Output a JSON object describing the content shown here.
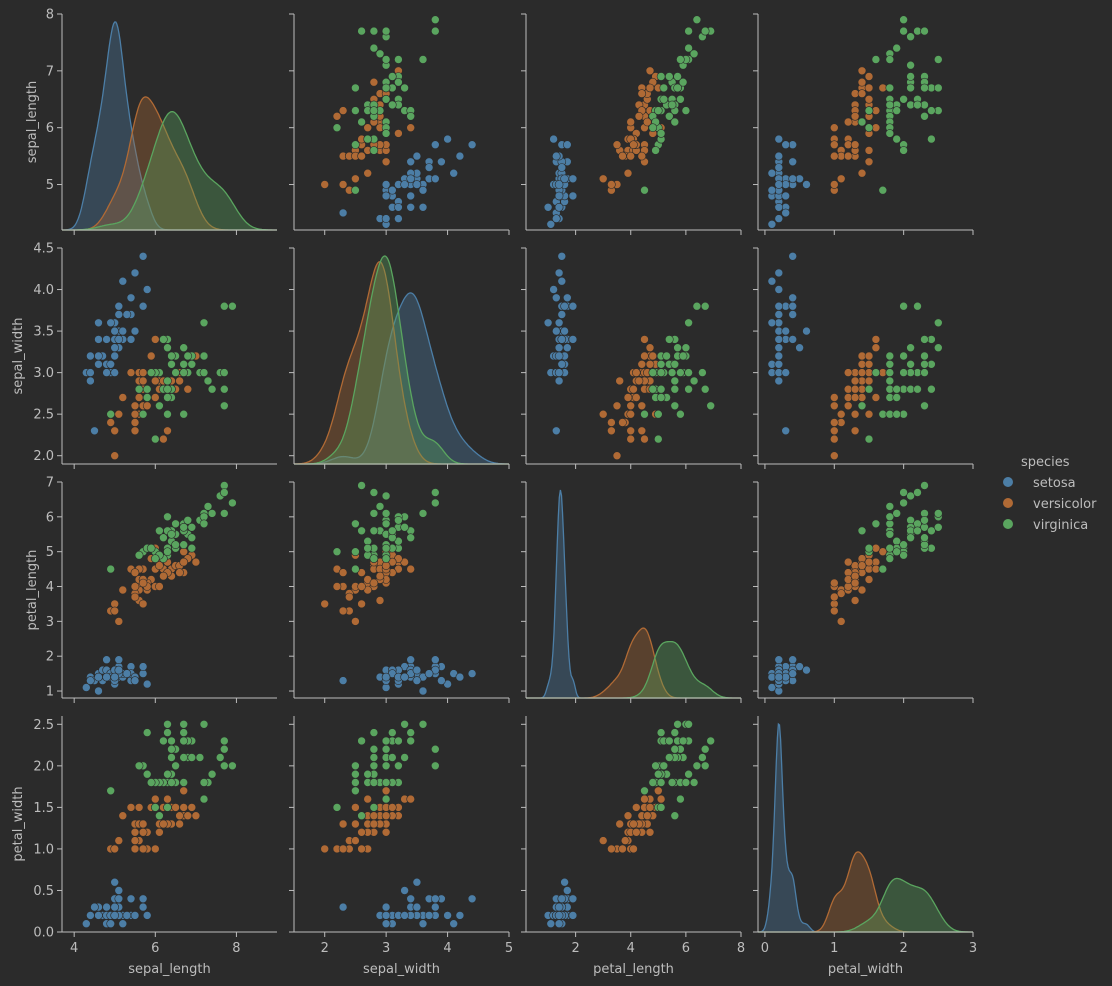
{
  "chart_data": {
    "type": "scatter",
    "kind": "pairplot",
    "diagonal": "kde",
    "grid": false,
    "variables": [
      "sepal_length",
      "sepal_width",
      "petal_length",
      "petal_width"
    ],
    "axes": {
      "sepal_length": {
        "label": "sepal_length",
        "ticks": [
          "4",
          "6",
          "8"
        ],
        "range": [
          3.7,
          9.0
        ]
      },
      "sepal_width": {
        "label": "sepal_width",
        "ticks": [
          "2",
          "3",
          "4",
          "5"
        ],
        "range": [
          1.5,
          5.0
        ]
      },
      "petal_length": {
        "label": "petal_length",
        "ticks": [
          "2",
          "4",
          "6",
          "8"
        ],
        "range": [
          0.2,
          8.0
        ]
      },
      "petal_width": {
        "label": "petal_width",
        "ticks": [
          "0",
          "1",
          "2",
          "3"
        ],
        "range": [
          -0.1,
          3.0
        ]
      }
    },
    "row_axes": {
      "sepal_length": {
        "ticks": [
          "5",
          "6",
          "7",
          "8"
        ],
        "range": [
          4.2,
          8.0
        ]
      },
      "sepal_width": {
        "ticks": [
          "2.0",
          "2.5",
          "3.0",
          "3.5",
          "4.0",
          "4.5"
        ],
        "range": [
          1.9,
          4.5
        ]
      },
      "petal_length": {
        "ticks": [
          "1",
          "2",
          "3",
          "4",
          "5",
          "6",
          "7"
        ],
        "range": [
          0.8,
          7.0
        ]
      },
      "petal_width": {
        "ticks": [
          "0.0",
          "0.5",
          "1.0",
          "1.5",
          "2.0",
          "2.5"
        ],
        "range": [
          0.0,
          2.6
        ]
      }
    },
    "legend": {
      "title": "species",
      "position": "right",
      "entries": [
        {
          "name": "setosa",
          "color": "#4c7ea6"
        },
        {
          "name": "versicolor",
          "color": "#b06a35"
        },
        {
          "name": "virginica",
          "color": "#5aa55f"
        }
      ]
    },
    "series": [
      {
        "name": "setosa",
        "color": "#4c7ea6",
        "points": [
          [
            5.1,
            3.5,
            1.4,
            0.2
          ],
          [
            4.9,
            3.0,
            1.4,
            0.2
          ],
          [
            4.7,
            3.2,
            1.3,
            0.2
          ],
          [
            4.6,
            3.1,
            1.5,
            0.2
          ],
          [
            5.0,
            3.6,
            1.4,
            0.2
          ],
          [
            5.4,
            3.9,
            1.7,
            0.4
          ],
          [
            4.6,
            3.4,
            1.4,
            0.3
          ],
          [
            5.0,
            3.4,
            1.5,
            0.2
          ],
          [
            4.4,
            2.9,
            1.4,
            0.2
          ],
          [
            4.9,
            3.1,
            1.5,
            0.1
          ],
          [
            5.4,
            3.7,
            1.5,
            0.2
          ],
          [
            4.8,
            3.4,
            1.6,
            0.2
          ],
          [
            4.8,
            3.0,
            1.4,
            0.1
          ],
          [
            4.3,
            3.0,
            1.1,
            0.1
          ],
          [
            5.8,
            4.0,
            1.2,
            0.2
          ],
          [
            5.7,
            4.4,
            1.5,
            0.4
          ],
          [
            5.4,
            3.9,
            1.3,
            0.4
          ],
          [
            5.1,
            3.5,
            1.4,
            0.3
          ],
          [
            5.7,
            3.8,
            1.7,
            0.3
          ],
          [
            5.1,
            3.8,
            1.5,
            0.3
          ],
          [
            5.4,
            3.4,
            1.7,
            0.2
          ],
          [
            5.1,
            3.7,
            1.5,
            0.4
          ],
          [
            4.6,
            3.6,
            1.0,
            0.2
          ],
          [
            5.1,
            3.3,
            1.7,
            0.5
          ],
          [
            4.8,
            3.4,
            1.9,
            0.2
          ],
          [
            5.0,
            3.0,
            1.6,
            0.2
          ],
          [
            5.0,
            3.4,
            1.6,
            0.4
          ],
          [
            5.2,
            3.5,
            1.5,
            0.2
          ],
          [
            5.2,
            3.4,
            1.4,
            0.2
          ],
          [
            4.7,
            3.2,
            1.6,
            0.2
          ],
          [
            4.8,
            3.1,
            1.6,
            0.2
          ],
          [
            5.4,
            3.4,
            1.5,
            0.4
          ],
          [
            5.2,
            4.1,
            1.5,
            0.1
          ],
          [
            5.5,
            4.2,
            1.4,
            0.2
          ],
          [
            4.9,
            3.1,
            1.5,
            0.2
          ],
          [
            5.0,
            3.2,
            1.2,
            0.2
          ],
          [
            5.5,
            3.5,
            1.3,
            0.2
          ],
          [
            4.9,
            3.6,
            1.4,
            0.1
          ],
          [
            4.4,
            3.0,
            1.3,
            0.2
          ],
          [
            5.1,
            3.4,
            1.5,
            0.2
          ],
          [
            5.0,
            3.5,
            1.3,
            0.3
          ],
          [
            4.5,
            2.3,
            1.3,
            0.3
          ],
          [
            4.4,
            3.2,
            1.3,
            0.2
          ],
          [
            5.0,
            3.5,
            1.6,
            0.6
          ],
          [
            5.1,
            3.8,
            1.9,
            0.4
          ],
          [
            4.8,
            3.0,
            1.4,
            0.3
          ],
          [
            5.1,
            3.8,
            1.6,
            0.2
          ],
          [
            4.6,
            3.2,
            1.4,
            0.2
          ],
          [
            5.3,
            3.7,
            1.5,
            0.2
          ],
          [
            5.0,
            3.3,
            1.4,
            0.2
          ]
        ]
      },
      {
        "name": "versicolor",
        "color": "#b06a35",
        "points": [
          [
            7.0,
            3.2,
            4.7,
            1.4
          ],
          [
            6.4,
            3.2,
            4.5,
            1.5
          ],
          [
            6.9,
            3.1,
            4.9,
            1.5
          ],
          [
            5.5,
            2.3,
            4.0,
            1.3
          ],
          [
            6.5,
            2.8,
            4.6,
            1.5
          ],
          [
            5.7,
            2.8,
            4.5,
            1.3
          ],
          [
            6.3,
            3.3,
            4.7,
            1.6
          ],
          [
            4.9,
            2.4,
            3.3,
            1.0
          ],
          [
            6.6,
            2.9,
            4.6,
            1.3
          ],
          [
            5.2,
            2.7,
            3.9,
            1.4
          ],
          [
            5.0,
            2.0,
            3.5,
            1.0
          ],
          [
            5.9,
            3.0,
            4.2,
            1.5
          ],
          [
            6.0,
            2.2,
            4.0,
            1.0
          ],
          [
            6.1,
            2.9,
            4.7,
            1.4
          ],
          [
            5.6,
            2.9,
            3.6,
            1.3
          ],
          [
            6.7,
            3.1,
            4.4,
            1.4
          ],
          [
            5.6,
            3.0,
            4.5,
            1.5
          ],
          [
            5.8,
            2.7,
            4.1,
            1.0
          ],
          [
            6.2,
            2.2,
            4.5,
            1.5
          ],
          [
            5.6,
            2.5,
            3.9,
            1.1
          ],
          [
            5.9,
            3.2,
            4.8,
            1.8
          ],
          [
            6.1,
            2.8,
            4.0,
            1.3
          ],
          [
            6.3,
            2.5,
            4.9,
            1.5
          ],
          [
            6.1,
            2.8,
            4.7,
            1.2
          ],
          [
            6.4,
            2.9,
            4.3,
            1.3
          ],
          [
            6.6,
            3.0,
            4.4,
            1.4
          ],
          [
            6.8,
            2.8,
            4.8,
            1.4
          ],
          [
            6.7,
            3.0,
            5.0,
            1.7
          ],
          [
            6.0,
            2.9,
            4.5,
            1.5
          ],
          [
            5.7,
            2.6,
            3.5,
            1.0
          ],
          [
            5.5,
            2.4,
            3.8,
            1.1
          ],
          [
            5.5,
            2.4,
            3.7,
            1.0
          ],
          [
            5.8,
            2.7,
            3.9,
            1.2
          ],
          [
            6.0,
            2.7,
            5.1,
            1.6
          ],
          [
            5.4,
            3.0,
            4.5,
            1.5
          ],
          [
            6.0,
            3.4,
            4.5,
            1.6
          ],
          [
            6.7,
            3.1,
            4.7,
            1.5
          ],
          [
            6.3,
            2.3,
            4.4,
            1.3
          ],
          [
            5.6,
            3.0,
            4.1,
            1.3
          ],
          [
            5.5,
            2.5,
            4.0,
            1.3
          ],
          [
            5.5,
            2.6,
            4.4,
            1.2
          ],
          [
            6.1,
            3.0,
            4.6,
            1.4
          ],
          [
            5.8,
            2.6,
            4.0,
            1.2
          ],
          [
            5.0,
            2.3,
            3.3,
            1.0
          ],
          [
            5.6,
            2.7,
            4.2,
            1.3
          ],
          [
            5.7,
            3.0,
            4.2,
            1.2
          ],
          [
            5.7,
            2.9,
            4.2,
            1.3
          ],
          [
            6.2,
            2.9,
            4.3,
            1.3
          ],
          [
            5.1,
            2.5,
            3.0,
            1.1
          ],
          [
            5.7,
            2.8,
            4.1,
            1.3
          ]
        ]
      },
      {
        "name": "virginica",
        "color": "#5aa55f",
        "points": [
          [
            6.3,
            3.3,
            6.0,
            2.5
          ],
          [
            5.8,
            2.7,
            5.1,
            1.9
          ],
          [
            7.1,
            3.0,
            5.9,
            2.1
          ],
          [
            6.3,
            2.9,
            5.6,
            1.8
          ],
          [
            6.5,
            3.0,
            5.8,
            2.2
          ],
          [
            7.6,
            3.0,
            6.6,
            2.1
          ],
          [
            4.9,
            2.5,
            4.5,
            1.7
          ],
          [
            7.3,
            2.9,
            6.3,
            1.8
          ],
          [
            6.7,
            2.5,
            5.8,
            1.8
          ],
          [
            7.2,
            3.6,
            6.1,
            2.5
          ],
          [
            6.5,
            3.2,
            5.1,
            2.0
          ],
          [
            6.4,
            2.7,
            5.3,
            1.9
          ],
          [
            6.8,
            3.0,
            5.5,
            2.1
          ],
          [
            5.7,
            2.5,
            5.0,
            2.0
          ],
          [
            5.8,
            2.8,
            5.1,
            2.4
          ],
          [
            6.4,
            3.2,
            5.3,
            2.3
          ],
          [
            6.5,
            3.0,
            5.5,
            1.8
          ],
          [
            7.7,
            3.8,
            6.7,
            2.2
          ],
          [
            7.7,
            2.6,
            6.9,
            2.3
          ],
          [
            6.0,
            2.2,
            5.0,
            1.5
          ],
          [
            6.9,
            3.2,
            5.7,
            2.3
          ],
          [
            5.6,
            2.8,
            4.9,
            2.0
          ],
          [
            7.7,
            2.8,
            6.7,
            2.0
          ],
          [
            6.3,
            2.7,
            4.9,
            1.8
          ],
          [
            6.7,
            3.3,
            5.7,
            2.1
          ],
          [
            7.2,
            3.2,
            6.0,
            1.8
          ],
          [
            6.2,
            2.8,
            4.8,
            1.8
          ],
          [
            6.1,
            3.0,
            4.9,
            1.8
          ],
          [
            6.4,
            2.8,
            5.6,
            2.1
          ],
          [
            7.2,
            3.0,
            5.8,
            1.6
          ],
          [
            7.4,
            2.8,
            6.1,
            1.9
          ],
          [
            7.9,
            3.8,
            6.4,
            2.0
          ],
          [
            6.4,
            2.8,
            5.6,
            2.2
          ],
          [
            6.3,
            2.8,
            5.1,
            1.5
          ],
          [
            6.1,
            2.6,
            5.6,
            1.4
          ],
          [
            7.7,
            3.0,
            6.1,
            2.3
          ],
          [
            6.3,
            3.4,
            5.6,
            2.4
          ],
          [
            6.4,
            3.1,
            5.5,
            1.8
          ],
          [
            6.0,
            3.0,
            4.8,
            1.8
          ],
          [
            6.9,
            3.1,
            5.4,
            2.1
          ],
          [
            6.7,
            3.1,
            5.6,
            2.4
          ],
          [
            6.9,
            3.1,
            5.1,
            2.3
          ],
          [
            5.8,
            2.7,
            5.1,
            1.9
          ],
          [
            6.8,
            3.2,
            5.9,
            2.3
          ],
          [
            6.7,
            3.3,
            5.7,
            2.5
          ],
          [
            6.7,
            3.0,
            5.2,
            2.3
          ],
          [
            6.3,
            2.5,
            5.0,
            1.9
          ],
          [
            6.5,
            3.0,
            5.2,
            2.0
          ],
          [
            6.2,
            3.4,
            5.4,
            2.3
          ],
          [
            5.9,
            3.0,
            5.1,
            1.8
          ]
        ]
      }
    ]
  }
}
